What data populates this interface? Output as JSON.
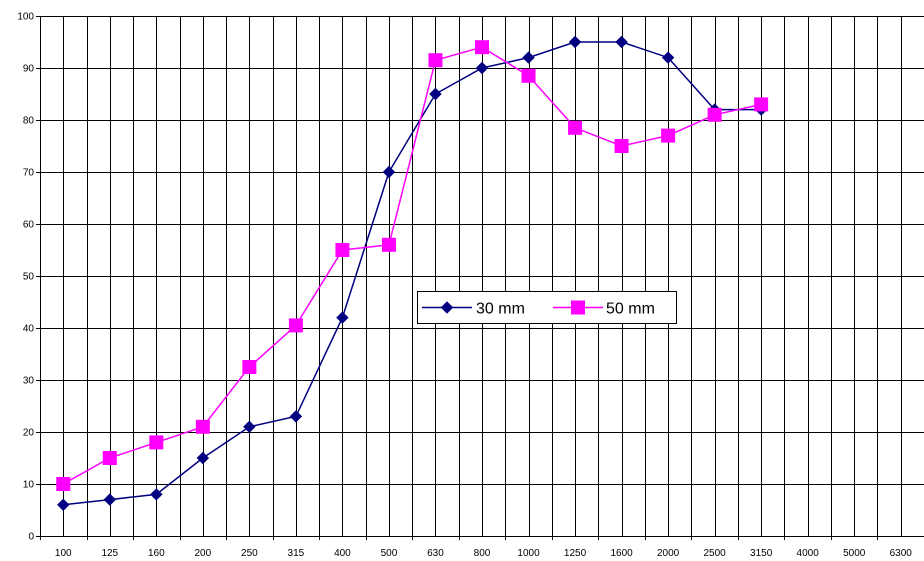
{
  "chart_data": {
    "type": "line",
    "title": "",
    "xlabel": "",
    "ylabel": "",
    "categories": [
      "100",
      "125",
      "160",
      "200",
      "250",
      "315",
      "400",
      "500",
      "630",
      "800",
      "1000",
      "1250",
      "1600",
      "2000",
      "2500",
      "3150",
      "4000",
      "5000",
      "6300"
    ],
    "ylim": [
      0,
      100
    ],
    "yticks": [
      0,
      10,
      20,
      30,
      40,
      50,
      60,
      70,
      80,
      90,
      100
    ],
    "grid": true,
    "legend_position": "center",
    "series": [
      {
        "name": "30 mm",
        "color": "#000080",
        "marker": "diamond",
        "values": [
          6,
          7,
          8,
          15,
          21,
          23,
          42,
          70,
          85,
          90,
          92,
          95,
          95,
          92,
          82,
          82,
          null,
          null,
          null
        ]
      },
      {
        "name": "50 mm",
        "color": "#ff00ff",
        "marker": "square",
        "values": [
          10,
          15,
          18,
          21,
          32.5,
          40.5,
          55,
          56,
          91.5,
          94,
          88.5,
          78.5,
          75,
          77,
          81,
          83,
          null,
          null,
          null
        ]
      }
    ]
  }
}
